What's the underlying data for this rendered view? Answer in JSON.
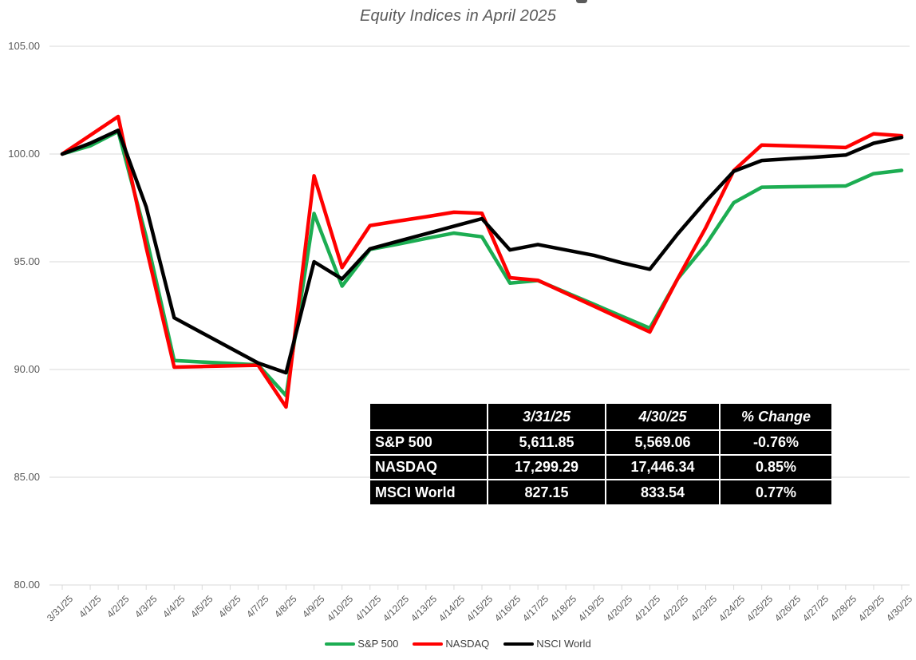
{
  "title": "Equity Indices in April 2025",
  "chart_data": {
    "type": "line",
    "title": "Equity Indices in April 2025",
    "x": [
      "3/31/25",
      "4/1/25",
      "4/2/25",
      "4/3/25",
      "4/4/25",
      "4/5/25",
      "4/6/25",
      "4/7/25",
      "4/8/25",
      "4/9/25",
      "4/10/25",
      "4/11/25",
      "4/12/25",
      "4/13/25",
      "4/14/25",
      "4/15/25",
      "4/16/25",
      "4/17/25",
      "4/18/25",
      "4/19/25",
      "4/20/25",
      "4/21/25",
      "4/22/25",
      "4/23/25",
      "4/24/25",
      "4/25/25",
      "4/26/25",
      "4/27/25",
      "4/28/25",
      "4/29/25",
      "4/30/25"
    ],
    "series": [
      {
        "name": "S&P 500",
        "color": "#1CAD52",
        "values": [
          100,
          100.38,
          101.05,
          96.16,
          90.42,
          90.35,
          90.28,
          90.21,
          88.79,
          97.24,
          93.87,
          95.57,
          95.82,
          96.08,
          96.33,
          96.16,
          94.01,
          94.13,
          93.58,
          93.03,
          92.47,
          91.92,
          94.22,
          95.79,
          97.74,
          98.46,
          98.48,
          98.5,
          98.52,
          99.09,
          99.24
        ]
      },
      {
        "name": "NASDAQ",
        "color": "#FF0000",
        "values": [
          100,
          100.87,
          101.74,
          95.67,
          90.11,
          90.14,
          90.17,
          90.2,
          88.26,
          98.99,
          94.73,
          96.68,
          96.89,
          97.09,
          97.3,
          97.25,
          94.26,
          94.14,
          93.54,
          92.94,
          92.34,
          91.74,
          94.23,
          96.58,
          99.23,
          100.42,
          100.38,
          100.34,
          100.3,
          100.94,
          100.85
        ]
      },
      {
        "name": "NSCI World",
        "color": "#000000",
        "values": [
          100,
          100.5,
          101.1,
          97.55,
          92.4,
          91.7,
          91,
          90.3,
          89.85,
          95,
          94.2,
          95.6,
          95.95,
          96.3,
          96.65,
          97,
          95.55,
          95.8,
          95.55,
          95.3,
          94.95,
          94.65,
          96.3,
          97.8,
          99.2,
          99.7,
          99.78,
          99.86,
          99.95,
          100.5,
          100.77
        ]
      }
    ],
    "ylim": [
      80,
      105
    ],
    "ytick_values": [
      105,
      100,
      95,
      90,
      85,
      80
    ],
    "ytick_labels": [
      "105.00",
      "100.00",
      "95.00",
      "90.00",
      "85.00",
      "80.00"
    ],
    "grid": true,
    "legend_position": "bottom",
    "gridline_color": "#D9D9D9",
    "axis_text_color": "#595959"
  },
  "table": {
    "columns": [
      "",
      "3/31/25",
      "4/30/25",
      "% Change"
    ],
    "rows": [
      {
        "label": "S&P 500",
        "values": [
          "5,611.85",
          "5,569.06",
          "-0.76%"
        ]
      },
      {
        "label": "NASDAQ",
        "values": [
          "17,299.29",
          "17,446.34",
          "0.85%"
        ]
      },
      {
        "label": "MSCI World",
        "values": [
          "827.15",
          "833.54",
          "0.77%"
        ]
      }
    ],
    "background": "#000000",
    "text_color": "#FFFFFF"
  },
  "legend": {
    "items": [
      {
        "label": "S&P 500",
        "color": "#1CAD52"
      },
      {
        "label": "NASDAQ",
        "color": "#FF0000"
      },
      {
        "label": "NSCI World",
        "color": "#000000"
      }
    ]
  }
}
